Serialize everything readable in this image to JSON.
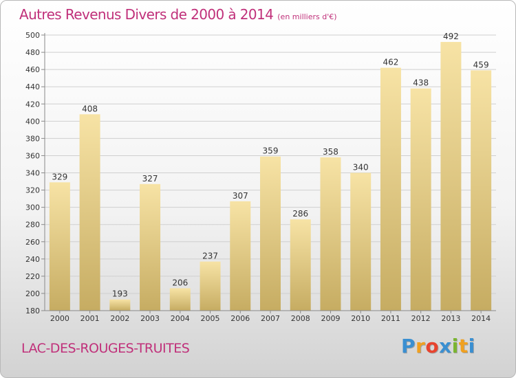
{
  "header": {
    "title": "Autres Revenus Divers de 2000 à 2014",
    "unit": "(en milliers d'€)"
  },
  "footer": {
    "place": "LAC-DES-ROUGES-TRUITES",
    "logo_letters": [
      "P",
      "r",
      "o",
      "x",
      "i",
      "t",
      "i"
    ],
    "logo_colors": [
      "#3a8fd1",
      "#f0a020",
      "#e8432e",
      "#3a8fd1",
      "#7ab530",
      "#f0a020",
      "#3a8fd1"
    ]
  },
  "colors": {
    "title": "#c0307a",
    "bar_top": "#f7e3a5",
    "bar_bottom": "#c6ac62",
    "axis": "#888888",
    "grid": "#cfcfcf"
  },
  "chart_data": {
    "type": "bar",
    "title": "Autres Revenus Divers de 2000 à 2014",
    "xlabel": "",
    "ylabel": "",
    "categories": [
      "2000",
      "2001",
      "2002",
      "2003",
      "2004",
      "2005",
      "2006",
      "2007",
      "2008",
      "2009",
      "2010",
      "2011",
      "2012",
      "2013",
      "2014"
    ],
    "values": [
      329,
      408,
      193,
      327,
      206,
      237,
      307,
      359,
      286,
      358,
      340,
      462,
      438,
      492,
      459
    ],
    "ylim": [
      180,
      500
    ],
    "yticks": [
      180,
      200,
      220,
      240,
      260,
      280,
      300,
      320,
      340,
      360,
      380,
      400,
      420,
      440,
      460,
      480,
      500
    ],
    "grid": true,
    "data_labels": true
  }
}
